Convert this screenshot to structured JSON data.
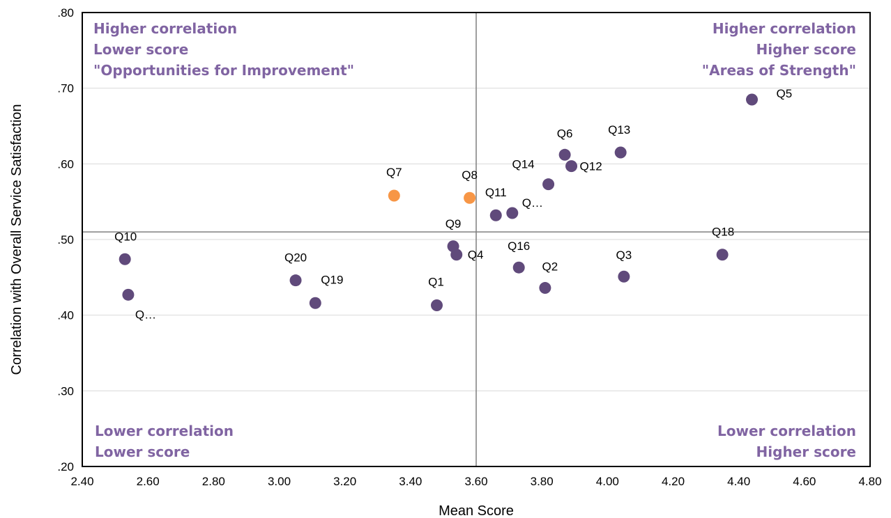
{
  "chart_data": {
    "type": "scatter",
    "xlabel": "Mean Score",
    "ylabel": "Correlation with Overall Service Satisfaction",
    "xlim": [
      2.4,
      4.8
    ],
    "ylim": [
      0.2,
      0.8
    ],
    "x_ticks": [
      "2.40",
      "2.60",
      "2.80",
      "3.00",
      "3.20",
      "3.40",
      "3.60",
      "3.80",
      "4.00",
      "4.20",
      "4.40",
      "4.60",
      "4.80"
    ],
    "y_ticks": [
      ".20",
      ".30",
      ".40",
      ".50",
      ".60",
      ".70",
      ".80"
    ],
    "reference_lines": {
      "x": 3.6,
      "y": 0.51
    },
    "grid": true,
    "colors": {
      "default": "#604a7b",
      "highlight": "#f79646",
      "quadrant_text": "#8064a2",
      "reference": "#7f7f7f",
      "grid": "#d9d9d9"
    },
    "quadrant_labels": {
      "top_left": [
        "Higher correlation",
        "Lower score",
        "\"Opportunities for Improvement\""
      ],
      "top_right": [
        "Higher correlation",
        "Higher score",
        "\"Areas of Strength\""
      ],
      "bottom_left": [
        "Lower correlation",
        "Lower score"
      ],
      "bottom_right": [
        "Lower correlation",
        "Higher score"
      ]
    },
    "points": [
      {
        "label": "Q1",
        "x": 3.48,
        "y": 0.413,
        "highlight": false
      },
      {
        "label": "Q2",
        "x": 3.81,
        "y": 0.436,
        "highlight": false
      },
      {
        "label": "Q3",
        "x": 4.05,
        "y": 0.451,
        "highlight": false
      },
      {
        "label": "Q4",
        "x": 3.54,
        "y": 0.48,
        "highlight": false
      },
      {
        "label": "Q5",
        "x": 4.44,
        "y": 0.685,
        "highlight": false
      },
      {
        "label": "Q6",
        "x": 3.87,
        "y": 0.612,
        "highlight": false
      },
      {
        "label": "Q7",
        "x": 3.35,
        "y": 0.558,
        "highlight": true
      },
      {
        "label": "Q8",
        "x": 3.58,
        "y": 0.555,
        "highlight": true
      },
      {
        "label": "Q9",
        "x": 3.53,
        "y": 0.491,
        "highlight": false
      },
      {
        "label": "Q10",
        "x": 2.53,
        "y": 0.474,
        "highlight": false
      },
      {
        "label": "Q11",
        "x": 3.66,
        "y": 0.532,
        "highlight": false
      },
      {
        "label": "Q12",
        "x": 3.89,
        "y": 0.597,
        "highlight": false
      },
      {
        "label": "Q13",
        "x": 4.04,
        "y": 0.615,
        "highlight": false
      },
      {
        "label": "Q14",
        "x": 3.82,
        "y": 0.573,
        "highlight": false
      },
      {
        "label": "Q…",
        "x": 3.71,
        "y": 0.535,
        "highlight": false
      },
      {
        "label": "Q16",
        "x": 3.73,
        "y": 0.463,
        "highlight": false
      },
      {
        "label": "Q…",
        "x": 2.54,
        "y": 0.427,
        "highlight": false
      },
      {
        "label": "Q18",
        "x": 4.35,
        "y": 0.48,
        "highlight": false
      },
      {
        "label": "Q19",
        "x": 3.11,
        "y": 0.416,
        "highlight": false
      },
      {
        "label": "Q20",
        "x": 3.05,
        "y": 0.446,
        "highlight": false
      }
    ]
  }
}
